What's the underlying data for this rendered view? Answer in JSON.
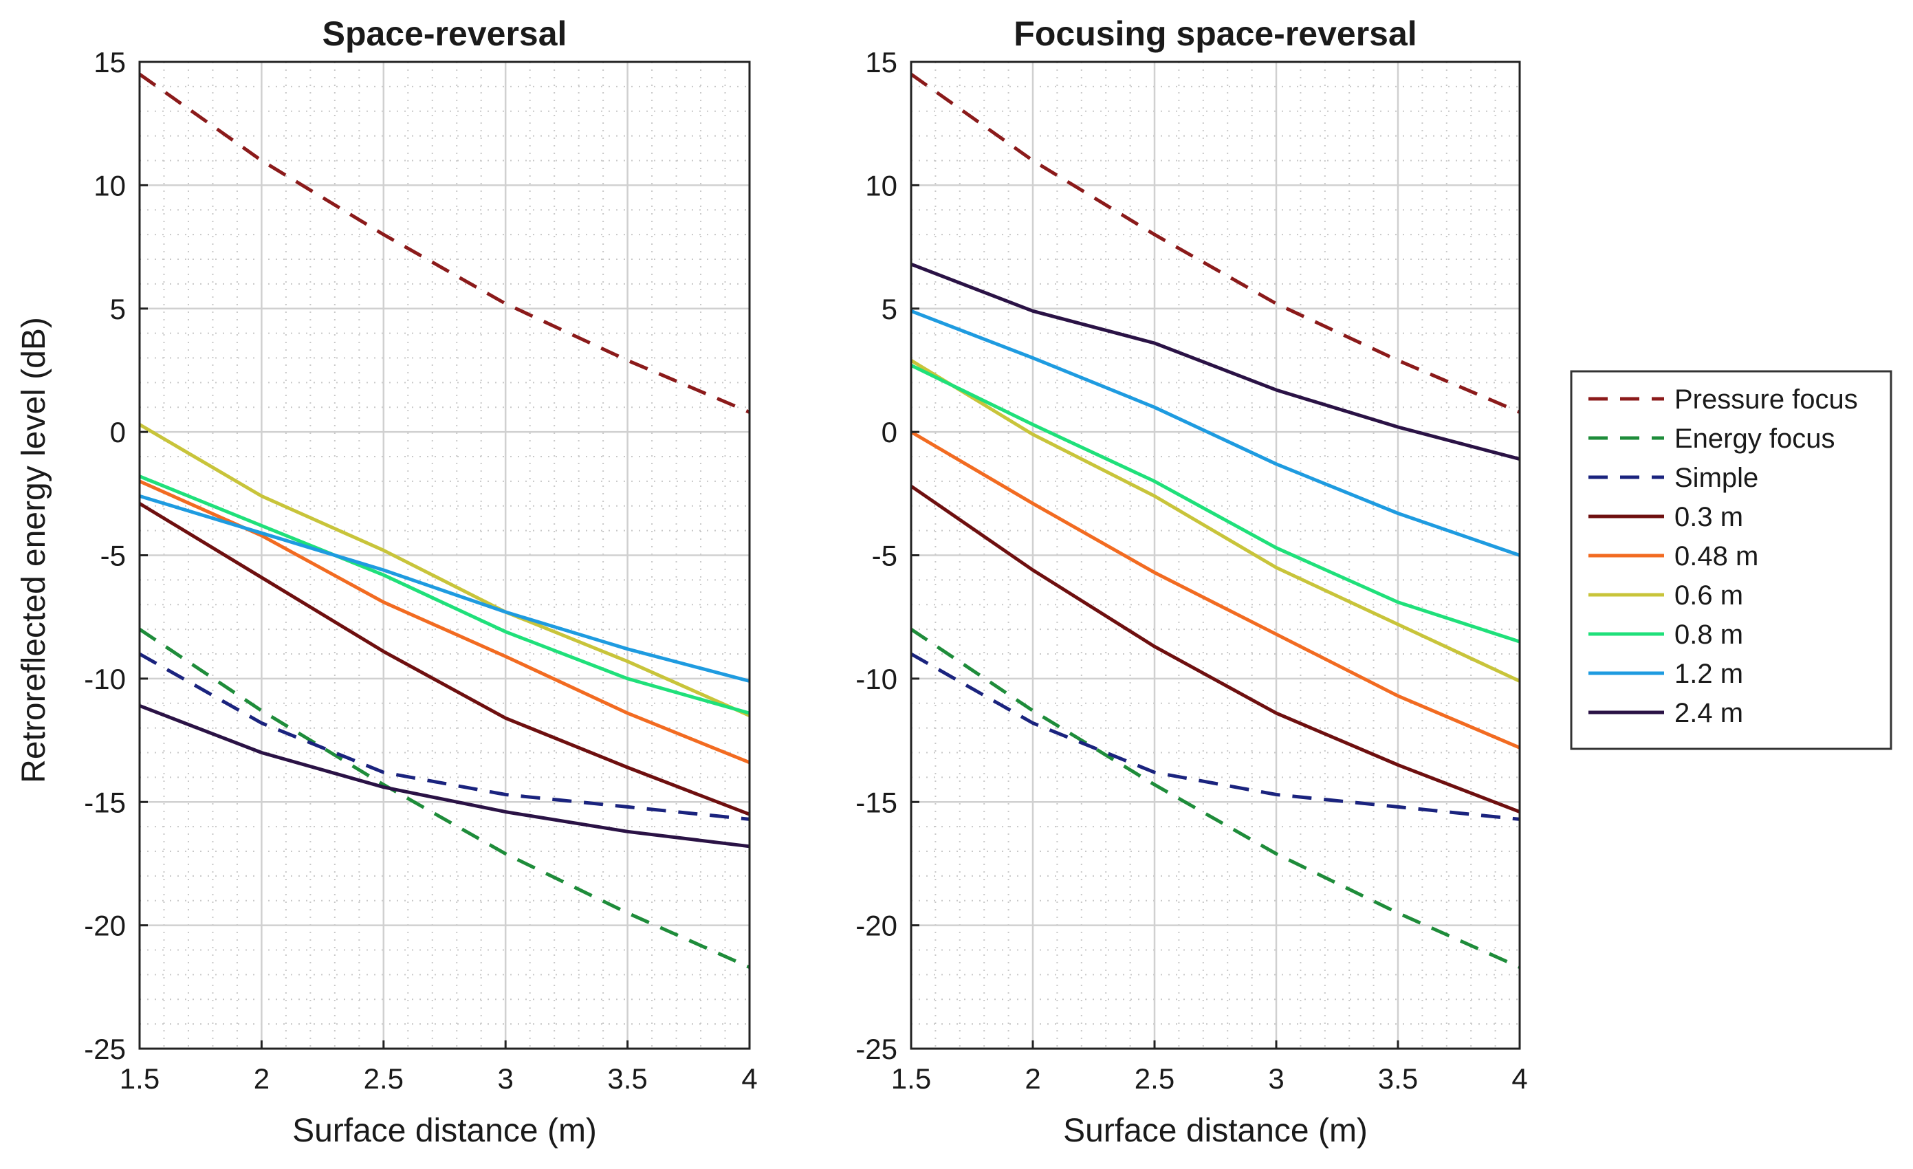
{
  "shared": {
    "ylabel": "Retroreflected energy level (dB)",
    "xlabel": "Surface distance (m)"
  },
  "legend": {
    "placement": "right",
    "entries": [
      {
        "label": "Pressure focus",
        "color": "#8b1a1a",
        "dash": true
      },
      {
        "label": "Energy focus",
        "color": "#1e8c3a",
        "dash": true
      },
      {
        "label": "Simple",
        "color": "#1a237e",
        "dash": true
      },
      {
        "label": "0.3 m",
        "color": "#6e0f0f",
        "dash": false
      },
      {
        "label": "0.48 m",
        "color": "#f26b21",
        "dash": false
      },
      {
        "label": "0.6 m",
        "color": "#c8c43a",
        "dash": false
      },
      {
        "label": "0.8 m",
        "color": "#1fe07a",
        "dash": false
      },
      {
        "label": "1.2 m",
        "color": "#1e9be0",
        "dash": false
      },
      {
        "label": "2.4 m",
        "color": "#2a1245",
        "dash": false
      }
    ]
  },
  "chart_data": [
    {
      "type": "line",
      "title": "Space-reversal",
      "xlabel": "Surface distance (m)",
      "ylabel": "Retroreflected energy level (dB)",
      "xlim": [
        1.5,
        4
      ],
      "ylim": [
        -25,
        15
      ],
      "xticks": [
        "1.5",
        "2",
        "2.5",
        "3",
        "3.5",
        "4"
      ],
      "yticks": [
        "15",
        "10",
        "5",
        "0",
        "-5",
        "-10",
        "-15",
        "-20",
        "-25"
      ],
      "grid": true,
      "x": [
        1.5,
        2,
        2.5,
        3,
        3.5,
        4
      ],
      "series": [
        {
          "name": "Pressure focus",
          "values": [
            14.5,
            11,
            8,
            5.2,
            2.9,
            0.8
          ]
        },
        {
          "name": "Energy focus",
          "values": [
            -8,
            -11.3,
            -14.3,
            -17.1,
            -19.5,
            -21.7
          ]
        },
        {
          "name": "Simple",
          "values": [
            -9,
            -11.8,
            -13.8,
            -14.7,
            -15.2,
            -15.7
          ]
        },
        {
          "name": "0.3 m",
          "values": [
            -2.9,
            -5.9,
            -8.9,
            -11.6,
            -13.6,
            -15.5
          ]
        },
        {
          "name": "0.48 m",
          "values": [
            -2,
            -4.2,
            -6.9,
            -9.1,
            -11.4,
            -13.4
          ]
        },
        {
          "name": "0.6 m",
          "values": [
            0.3,
            -2.6,
            -4.8,
            -7.3,
            -9.3,
            -11.5
          ]
        },
        {
          "name": "0.8 m",
          "values": [
            -1.8,
            -3.8,
            -5.8,
            -8.1,
            -10,
            -11.4
          ]
        },
        {
          "name": "1.2 m",
          "values": [
            -2.6,
            -4.1,
            -5.6,
            -7.3,
            -8.8,
            -10.1
          ]
        },
        {
          "name": "2.4 m",
          "values": [
            -11.1,
            -13,
            -14.4,
            -15.4,
            -16.2,
            -16.8
          ]
        }
      ]
    },
    {
      "type": "line",
      "title": "Focusing space-reversal",
      "xlabel": "Surface distance (m)",
      "ylabel": "",
      "xlim": [
        1.5,
        4
      ],
      "ylim": [
        -25,
        15
      ],
      "xticks": [
        "1.5",
        "2",
        "2.5",
        "3",
        "3.5",
        "4"
      ],
      "yticks": [
        "15",
        "10",
        "5",
        "0",
        "-5",
        "-10",
        "-15",
        "-20",
        "-25"
      ],
      "grid": true,
      "x": [
        1.5,
        2,
        2.5,
        3,
        3.5,
        4
      ],
      "series": [
        {
          "name": "Pressure focus",
          "values": [
            14.5,
            11,
            8,
            5.2,
            2.9,
            0.8
          ]
        },
        {
          "name": "Energy focus",
          "values": [
            -8,
            -11.3,
            -14.3,
            -17.1,
            -19.5,
            -21.7
          ]
        },
        {
          "name": "Simple",
          "values": [
            -9,
            -11.8,
            -13.8,
            -14.7,
            -15.2,
            -15.7
          ]
        },
        {
          "name": "0.3 m",
          "values": [
            -2.2,
            -5.6,
            -8.7,
            -11.4,
            -13.5,
            -15.4
          ]
        },
        {
          "name": "0.48 m",
          "values": [
            0,
            -2.9,
            -5.7,
            -8.2,
            -10.7,
            -12.8
          ]
        },
        {
          "name": "0.6 m",
          "values": [
            2.9,
            -0.1,
            -2.6,
            -5.5,
            -7.8,
            -10.1
          ]
        },
        {
          "name": "0.8 m",
          "values": [
            2.7,
            0.3,
            -2,
            -4.7,
            -6.9,
            -8.5
          ]
        },
        {
          "name": "1.2 m",
          "values": [
            4.9,
            3,
            1,
            -1.3,
            -3.3,
            -5
          ]
        },
        {
          "name": "2.4 m",
          "values": [
            6.8,
            4.9,
            3.6,
            1.7,
            0.2,
            -1.1
          ]
        }
      ]
    }
  ]
}
